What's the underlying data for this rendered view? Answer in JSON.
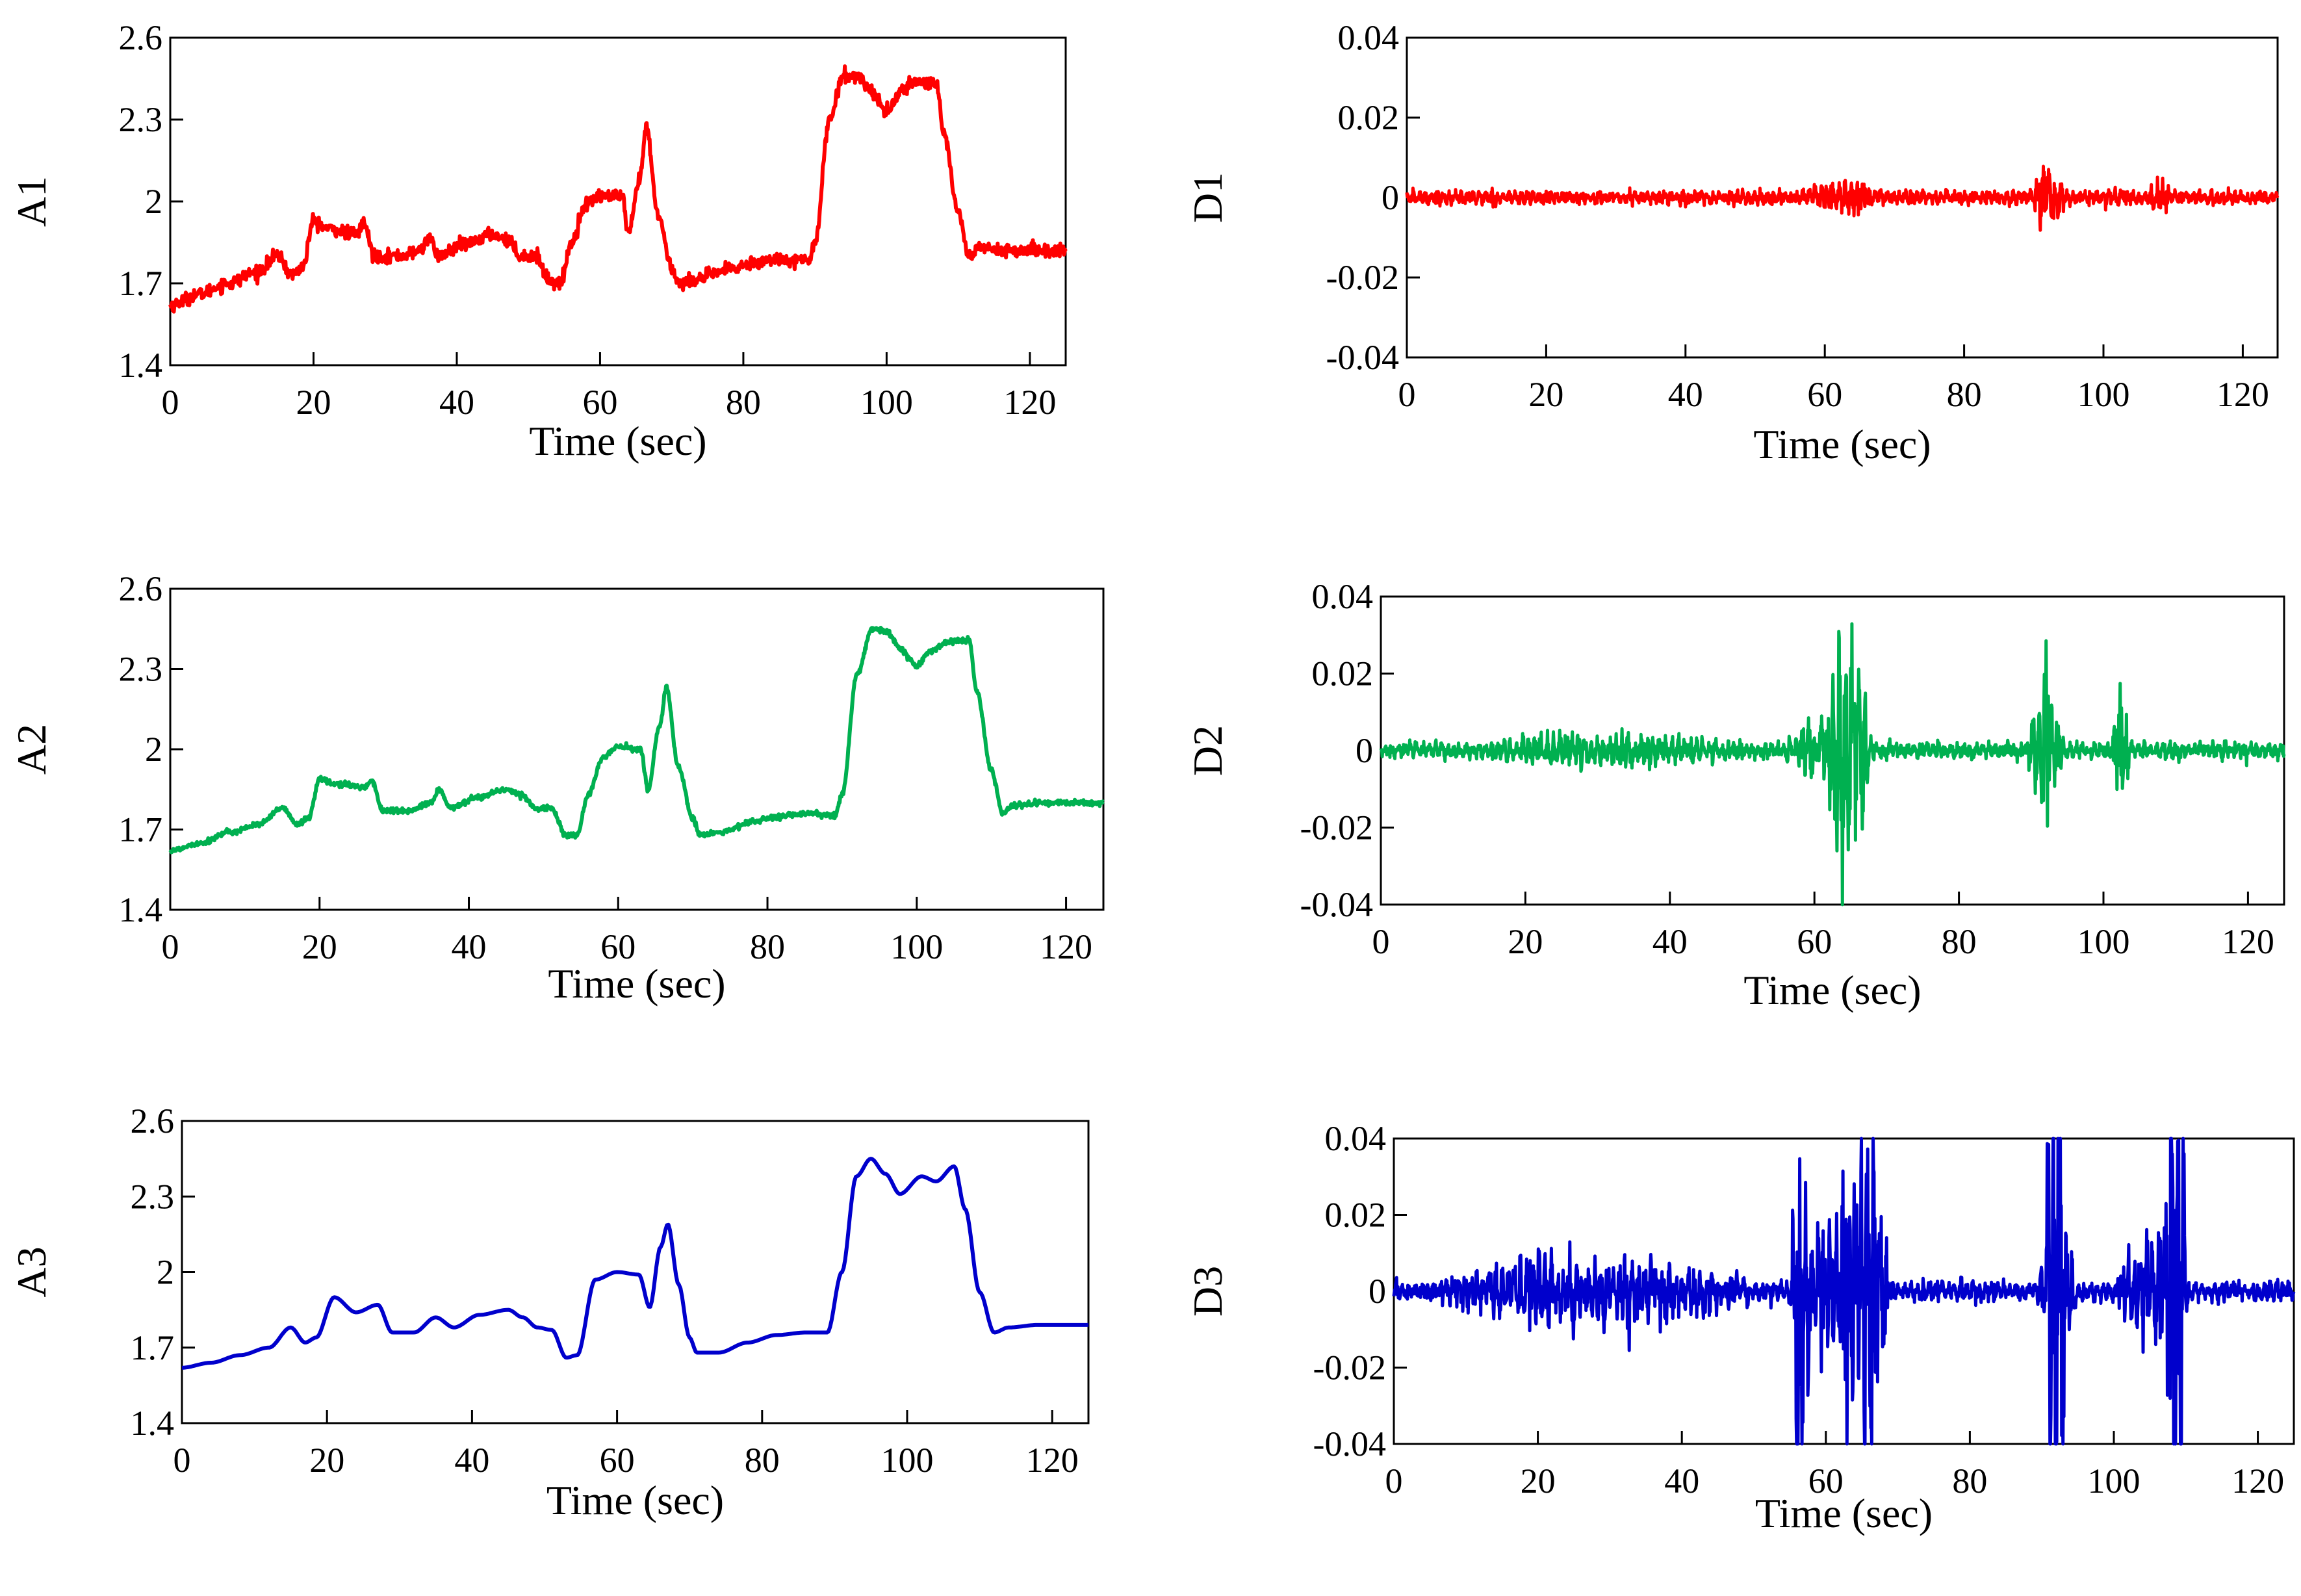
{
  "chart_data": [
    {
      "id": "A1",
      "type": "line",
      "ylabel": "A1",
      "xlabel": "Time (sec)",
      "color": "#ff0000",
      "xlim": [
        0,
        125
      ],
      "ylim": [
        1.4,
        2.6
      ],
      "xticks": [
        0,
        20,
        40,
        60,
        80,
        100,
        120
      ],
      "xtick_labels": [
        "0",
        "20",
        "40",
        "60",
        "80",
        "100",
        "120"
      ],
      "yticks": [
        1.4,
        1.7,
        2,
        2.3,
        2.6
      ],
      "ytick_labels": [
        "1.4",
        "1.7",
        "2",
        "2.3",
        "2.6"
      ],
      "noise": 0.012,
      "points": [
        [
          0,
          1.62
        ],
        [
          4,
          1.66
        ],
        [
          8,
          1.7
        ],
        [
          12,
          1.74
        ],
        [
          15,
          1.8
        ],
        [
          17,
          1.73
        ],
        [
          18.5,
          1.76
        ],
        [
          20,
          1.93
        ],
        [
          22,
          1.9
        ],
        [
          26,
          1.88
        ],
        [
          27,
          1.92
        ],
        [
          28.5,
          1.8
        ],
        [
          32,
          1.8
        ],
        [
          35,
          1.82
        ],
        [
          36,
          1.87
        ],
        [
          37.5,
          1.8
        ],
        [
          41,
          1.84
        ],
        [
          45,
          1.88
        ],
        [
          47,
          1.86
        ],
        [
          49,
          1.8
        ],
        [
          51,
          1.8
        ],
        [
          53,
          1.71
        ],
        [
          54.5,
          1.7
        ],
        [
          56,
          1.85
        ],
        [
          58,
          1.99
        ],
        [
          60,
          2.02
        ],
        [
          63,
          2.02
        ],
        [
          64,
          1.88
        ],
        [
          65.5,
          2.08
        ],
        [
          66.5,
          2.27
        ],
        [
          68,
          1.96
        ],
        [
          70,
          1.76
        ],
        [
          71,
          1.7
        ],
        [
          74,
          1.72
        ],
        [
          78,
          1.75
        ],
        [
          82,
          1.78
        ],
        [
          86,
          1.79
        ],
        [
          89,
          1.78
        ],
        [
          90,
          1.85
        ],
        [
          92,
          2.3
        ],
        [
          94,
          2.46
        ],
        [
          96,
          2.46
        ],
        [
          98,
          2.4
        ],
        [
          100,
          2.33
        ],
        [
          102,
          2.4
        ],
        [
          104,
          2.44
        ],
        [
          107,
          2.43
        ],
        [
          108,
          2.25
        ],
        [
          110,
          1.96
        ],
        [
          111.5,
          1.8
        ],
        [
          113,
          1.83
        ],
        [
          117,
          1.82
        ],
        [
          121,
          1.82
        ],
        [
          125,
          1.82
        ]
      ]
    },
    {
      "id": "D1",
      "type": "line",
      "ylabel": "D1",
      "xlabel": "Time (sec)",
      "color": "#ff0000",
      "xlim": [
        0,
        125
      ],
      "ylim": [
        -0.04,
        0.04
      ],
      "xticks": [
        0,
        20,
        40,
        60,
        80,
        100,
        120
      ],
      "xtick_labels": [
        "0",
        "20",
        "40",
        "60",
        "80",
        "100",
        "120"
      ],
      "yticks": [
        -0.04,
        -0.02,
        0,
        0.02,
        0.04
      ],
      "ytick_labels": [
        "-0.04",
        "-0.02",
        "0",
        "0.02",
        "0.04"
      ],
      "bursts": [
        [
          0,
          125,
          0.0015,
          0.8
        ],
        [
          55,
          70,
          0.0025,
          1.2
        ],
        [
          65,
          67.5,
          0.003,
          0.8
        ],
        [
          89,
          95,
          0.0035,
          1.6
        ],
        [
          91.5,
          92.5,
          0.005,
          1
        ],
        [
          106,
          110,
          0.003,
          1.3
        ]
      ]
    },
    {
      "id": "A2",
      "type": "line",
      "ylabel": "A2",
      "xlabel": "Time (sec)",
      "color": "#00b050",
      "xlim": [
        0,
        125
      ],
      "ylim": [
        1.4,
        2.6
      ],
      "xticks": [
        0,
        20,
        40,
        60,
        80,
        100,
        120
      ],
      "xtick_labels": [
        "0",
        "20",
        "40",
        "60",
        "80",
        "100",
        "120"
      ],
      "yticks": [
        1.4,
        1.7,
        2,
        2.3,
        2.6
      ],
      "ytick_labels": [
        "1.4",
        "1.7",
        "2",
        "2.3",
        "2.6"
      ],
      "noise": 0.005,
      "points": [
        [
          0,
          1.62
        ],
        [
          4,
          1.65
        ],
        [
          8,
          1.69
        ],
        [
          12,
          1.72
        ],
        [
          15,
          1.78
        ],
        [
          17,
          1.72
        ],
        [
          18.5,
          1.74
        ],
        [
          20,
          1.89
        ],
        [
          22,
          1.87
        ],
        [
          26,
          1.86
        ],
        [
          27,
          1.88
        ],
        [
          28.5,
          1.77
        ],
        [
          32,
          1.77
        ],
        [
          35,
          1.8
        ],
        [
          36,
          1.85
        ],
        [
          37.5,
          1.78
        ],
        [
          41,
          1.82
        ],
        [
          45,
          1.85
        ],
        [
          47,
          1.83
        ],
        [
          49,
          1.78
        ],
        [
          51,
          1.78
        ],
        [
          53,
          1.68
        ],
        [
          54.5,
          1.68
        ],
        [
          56,
          1.83
        ],
        [
          58,
          1.97
        ],
        [
          60,
          2.01
        ],
        [
          63,
          2.0
        ],
        [
          64,
          1.85
        ],
        [
          65.5,
          2.08
        ],
        [
          66.5,
          2.23
        ],
        [
          68,
          1.94
        ],
        [
          70,
          1.74
        ],
        [
          71,
          1.68
        ],
        [
          74,
          1.69
        ],
        [
          78,
          1.73
        ],
        [
          82,
          1.75
        ],
        [
          86,
          1.76
        ],
        [
          89,
          1.75
        ],
        [
          90,
          1.83
        ],
        [
          92,
          2.28
        ],
        [
          94,
          2.45
        ],
        [
          96,
          2.44
        ],
        [
          98,
          2.37
        ],
        [
          100,
          2.31
        ],
        [
          102,
          2.37
        ],
        [
          104,
          2.4
        ],
        [
          107,
          2.41
        ],
        [
          108,
          2.22
        ],
        [
          110,
          1.92
        ],
        [
          111.5,
          1.76
        ],
        [
          113,
          1.79
        ],
        [
          117,
          1.8
        ],
        [
          121,
          1.8
        ],
        [
          125,
          1.8
        ]
      ]
    },
    {
      "id": "D2",
      "type": "line",
      "ylabel": "D2",
      "xlabel": "Time  (sec)",
      "color": "#00b050",
      "xlim": [
        0,
        125
      ],
      "ylim": [
        -0.04,
        0.04
      ],
      "xticks": [
        0,
        20,
        40,
        60,
        80,
        100,
        120
      ],
      "xtick_labels": [
        "0",
        "20",
        "40",
        "60",
        "80",
        "100",
        "120"
      ],
      "yticks": [
        -0.04,
        -0.02,
        0,
        0.02,
        0.04
      ],
      "ytick_labels": [
        "-0.04",
        "-0.02",
        "0",
        "0.02",
        "0.04"
      ],
      "bursts": [
        [
          0,
          125,
          0.0025,
          0.6
        ],
        [
          10,
          55,
          0.004,
          0.8
        ],
        [
          55,
          70,
          0.006,
          1
        ],
        [
          61,
          68,
          0.018,
          1.3
        ],
        [
          64.5,
          66,
          0.01,
          1
        ],
        [
          89,
          95,
          0.008,
          1.3
        ],
        [
          91,
          93,
          0.017,
          1
        ],
        [
          101,
          104,
          0.008,
          1.5
        ]
      ]
    },
    {
      "id": "A3",
      "type": "line",
      "ylabel": "A3",
      "xlabel": "Time (sec)",
      "color": "#0000cc",
      "xlim": [
        0,
        125
      ],
      "ylim": [
        1.4,
        2.6
      ],
      "xticks": [
        0,
        20,
        40,
        60,
        80,
        100,
        120
      ],
      "xtick_labels": [
        "0",
        "20",
        "40",
        "60",
        "80",
        "100",
        "120"
      ],
      "yticks": [
        1.4,
        1.7,
        2,
        2.3,
        2.6
      ],
      "ytick_labels": [
        "1.4",
        "1.7",
        "2",
        "2.3",
        "2.6"
      ],
      "noise": 0,
      "points": [
        [
          0,
          1.62
        ],
        [
          4,
          1.64
        ],
        [
          8,
          1.67
        ],
        [
          12,
          1.7
        ],
        [
          15,
          1.78
        ],
        [
          17,
          1.72
        ],
        [
          18.5,
          1.74
        ],
        [
          21,
          1.9
        ],
        [
          24,
          1.84
        ],
        [
          27,
          1.87
        ],
        [
          29,
          1.76
        ],
        [
          32,
          1.76
        ],
        [
          35,
          1.82
        ],
        [
          37.5,
          1.78
        ],
        [
          41,
          1.83
        ],
        [
          45,
          1.85
        ],
        [
          47,
          1.82
        ],
        [
          49,
          1.78
        ],
        [
          51,
          1.77
        ],
        [
          53,
          1.66
        ],
        [
          54.5,
          1.67
        ],
        [
          57,
          1.97
        ],
        [
          60,
          2.0
        ],
        [
          63,
          1.99
        ],
        [
          64.5,
          1.86
        ],
        [
          66,
          2.1
        ],
        [
          67,
          2.19
        ],
        [
          68.5,
          1.95
        ],
        [
          70,
          1.74
        ],
        [
          71,
          1.68
        ],
        [
          74,
          1.68
        ],
        [
          78,
          1.72
        ],
        [
          82,
          1.75
        ],
        [
          86,
          1.76
        ],
        [
          89,
          1.76
        ],
        [
          91,
          2.0
        ],
        [
          93,
          2.38
        ],
        [
          95,
          2.45
        ],
        [
          97,
          2.39
        ],
        [
          99,
          2.31
        ],
        [
          102,
          2.38
        ],
        [
          104,
          2.36
        ],
        [
          106.5,
          2.42
        ],
        [
          108,
          2.25
        ],
        [
          110,
          1.92
        ],
        [
          112,
          1.76
        ],
        [
          114,
          1.78
        ],
        [
          118,
          1.79
        ],
        [
          122,
          1.79
        ],
        [
          125,
          1.79
        ]
      ]
    },
    {
      "id": "D3",
      "type": "line",
      "ylabel": "D3",
      "xlabel": "Time (sec)",
      "color": "#0000cc",
      "xlim": [
        0,
        125
      ],
      "ylim": [
        -0.04,
        0.04
      ],
      "xticks": [
        0,
        20,
        40,
        60,
        80,
        100,
        120
      ],
      "xtick_labels": [
        "0",
        "20",
        "40",
        "60",
        "80",
        "100",
        "120"
      ],
      "yticks": [
        -0.04,
        -0.02,
        0,
        0.02,
        0.04
      ],
      "ytick_labels": [
        "-0.04",
        "-0.02",
        "0",
        "0.02",
        "0.04"
      ],
      "bursts": [
        [
          0,
          125,
          0.003,
          0.6
        ],
        [
          0,
          55,
          0.007,
          0.9
        ],
        [
          54,
          70,
          0.012,
          1
        ],
        [
          55,
          58,
          0.035,
          1
        ],
        [
          61,
          69,
          0.03,
          1.2
        ],
        [
          89,
          95,
          0.015,
          1
        ],
        [
          90.5,
          93.5,
          0.04,
          1.4
        ],
        [
          100,
          111,
          0.012,
          1
        ],
        [
          107,
          110,
          0.045,
          1.4
        ]
      ]
    }
  ]
}
